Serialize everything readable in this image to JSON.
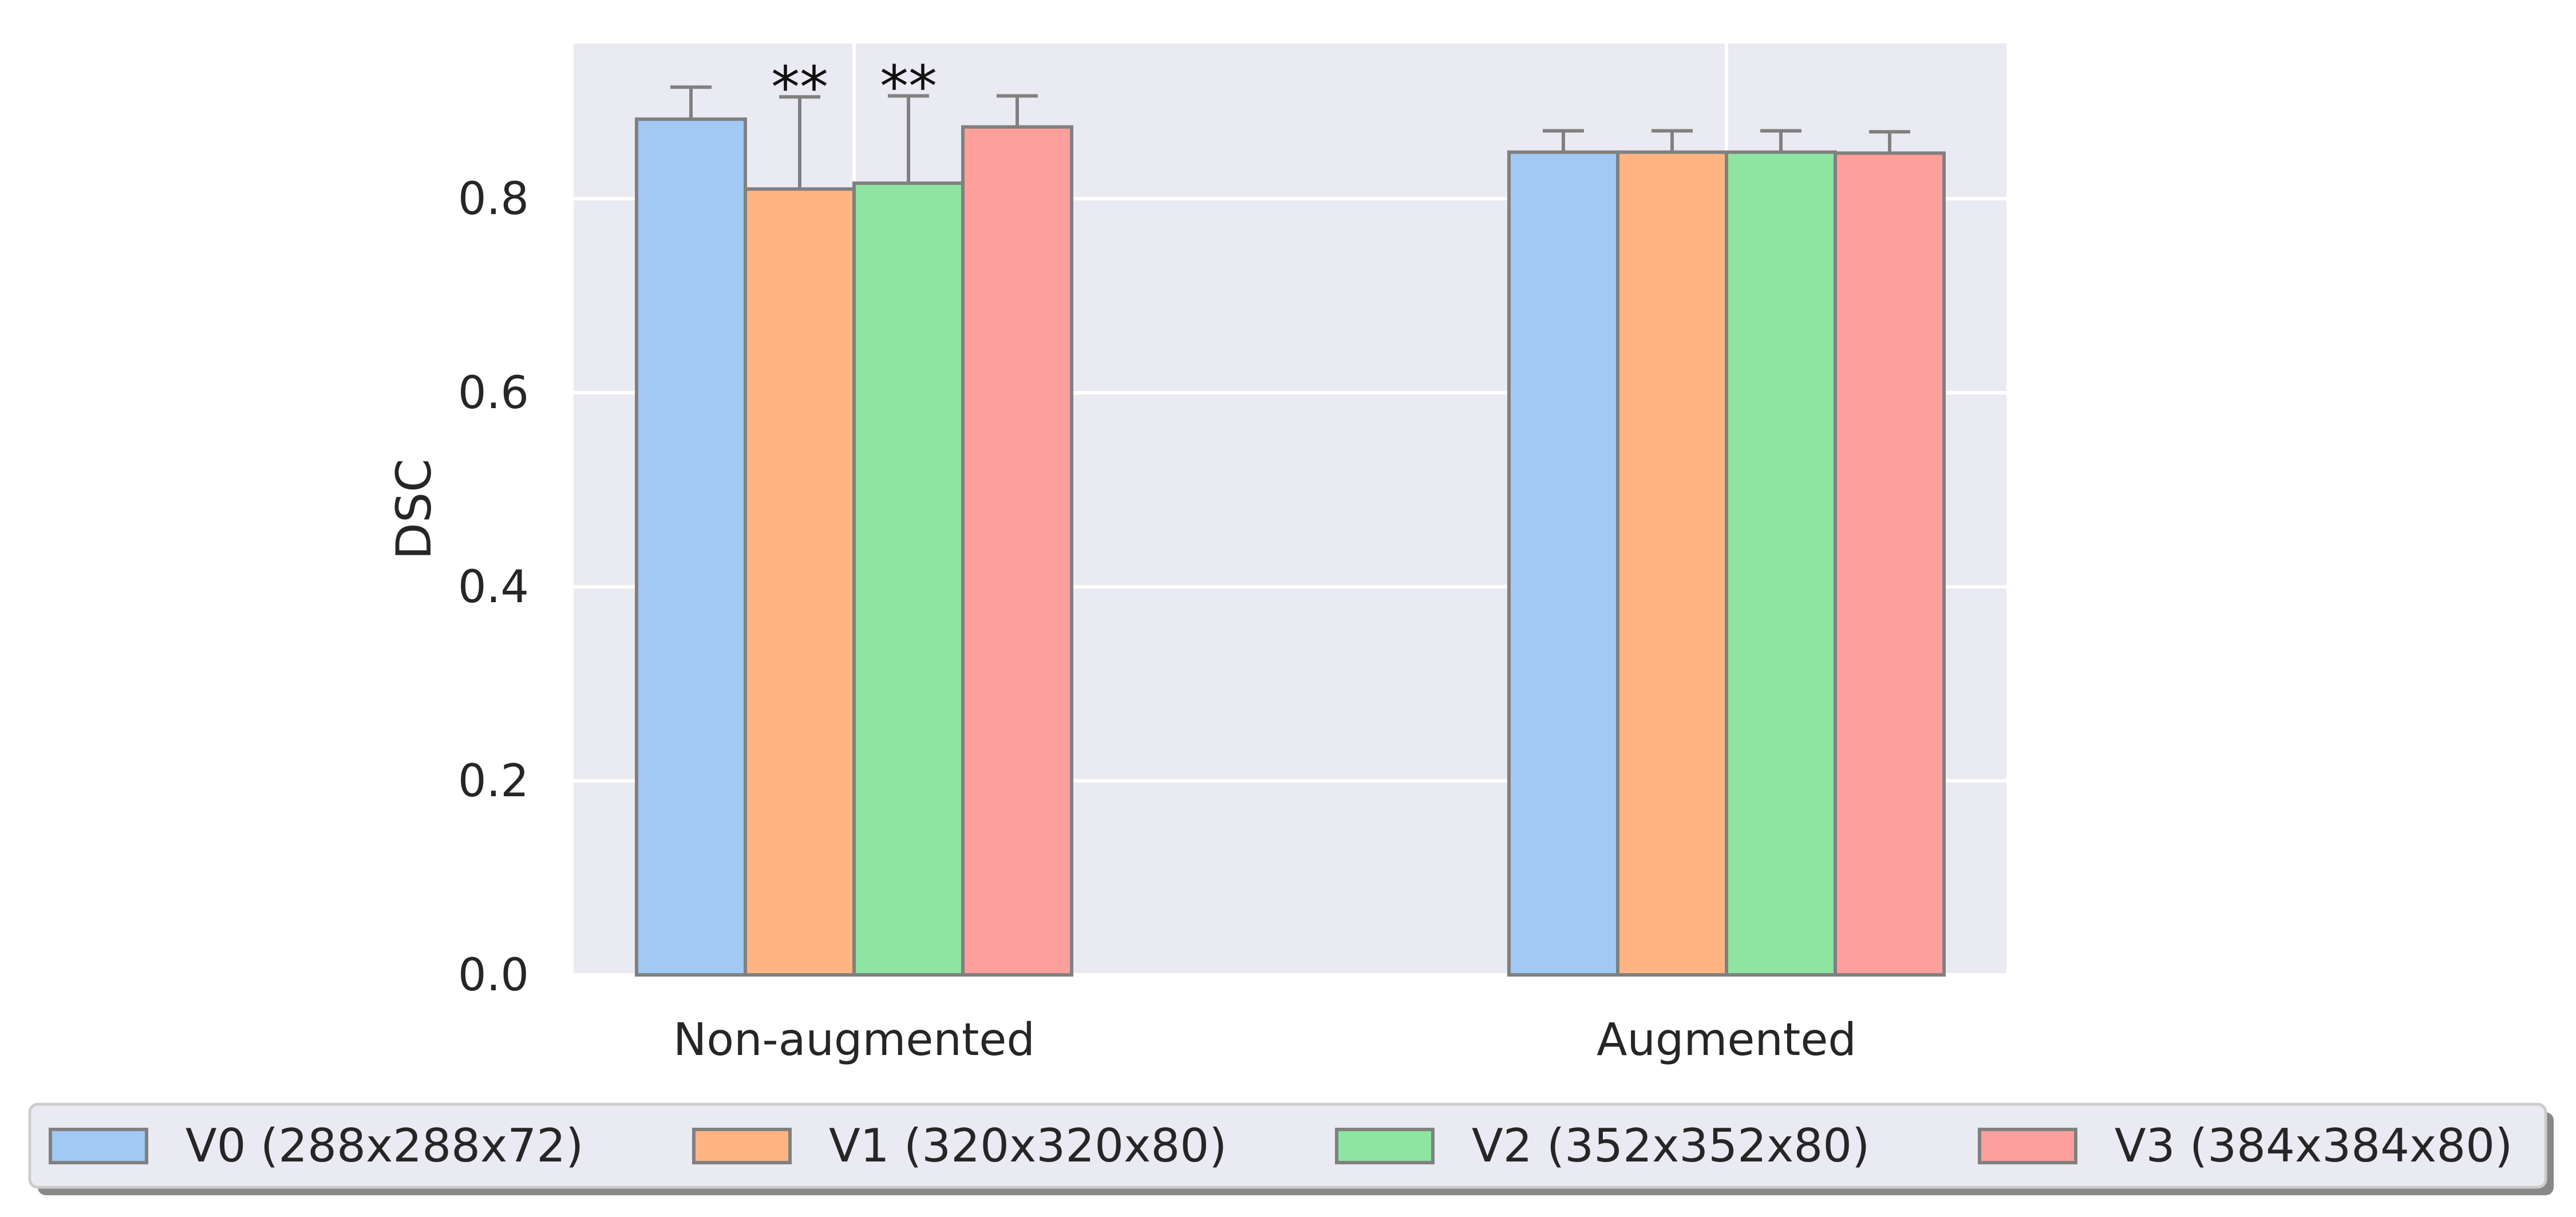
{
  "chart_data": {
    "type": "bar",
    "title": "",
    "xlabel": "",
    "ylabel": "DSC",
    "ylim": [
      0,
      0.96
    ],
    "yticks": [
      "0.0",
      "0.2",
      "0.4",
      "0.6",
      "0.8"
    ],
    "grid": true,
    "legend_position": "bottom",
    "categories": [
      "Non-augmented",
      "Augmented"
    ],
    "series": [
      {
        "name": "V0 (288x288x72)",
        "color": "#a1c9f4",
        "values": [
          0.882,
          0.848
        ],
        "errors": [
          0.033,
          0.022
        ]
      },
      {
        "name": "V1 (320x320x80)",
        "color": "#ffb482",
        "values": [
          0.81,
          0.848
        ],
        "errors": [
          0.095,
          0.022
        ]
      },
      {
        "name": "V2 (352x352x80)",
        "color": "#8de5a1",
        "values": [
          0.816,
          0.848
        ],
        "errors": [
          0.09,
          0.022
        ]
      },
      {
        "name": "V3 (384x384x80)",
        "color": "#ff9f9b",
        "values": [
          0.874,
          0.847
        ],
        "errors": [
          0.032,
          0.022
        ]
      }
    ],
    "annotations": [
      {
        "category": 0,
        "series": 1,
        "text": "**"
      },
      {
        "category": 0,
        "series": 2,
        "text": "**"
      }
    ]
  }
}
